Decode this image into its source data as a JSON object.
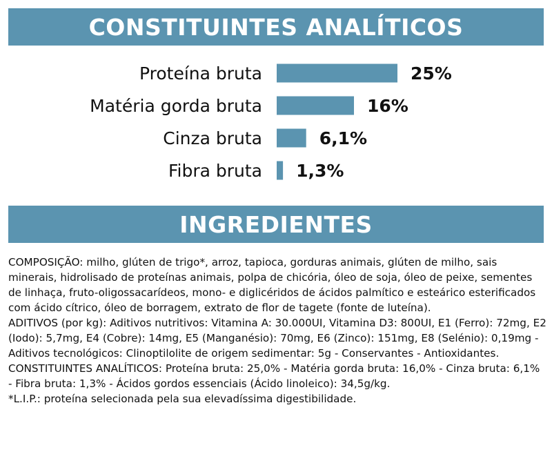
{
  "header_top": "CONSTITUINTES ANALÍTICOS",
  "header_bottom": "INGREDIENTES",
  "chart_data": {
    "type": "bar",
    "orientation": "horizontal",
    "categories": [
      "Proteína bruta",
      "Matéria gorda bruta",
      "Cinza bruta",
      "Fibra bruta"
    ],
    "values": [
      25,
      16,
      6.1,
      1.3
    ],
    "value_labels": [
      "25%",
      "16%",
      "6,1%",
      "1,3%"
    ],
    "unit": "%",
    "xlim": [
      0,
      25
    ],
    "grid": false,
    "bar_color": "#5b94b0"
  },
  "ingredients": {
    "composicao": "COMPOSIÇÃO: milho, glúten de trigo*, arroz, tapioca, gorduras animais, glúten de milho, sais minerais, hidrolisado de proteínas animais, polpa de chicória, óleo de soja, óleo de peixe, sementes de linhaça, fruto-oligossacarídeos, mono- e diglicéridos de ácidos palmítico e esteárico esterificados com ácido cítrico, óleo de borragem, extrato de flor de tagete (fonte de luteína).",
    "aditivos": " ADITIVOS (por kg): Aditivos nutritivos: Vitamina A: 30.000UI, Vitamina D3: 800UI, E1 (Ferro): 72mg, E2 (Iodo): 5,7mg, E4 (Cobre): 14mg, E5 (Manganésio): 70mg, E6 (Zinco): 151mg, E8 (Selénio): 0,19mg - Aditivos tecnológicos: Clinoptilolite de origem sedimentar: 5g - Conservantes - Antioxidantes.",
    "constituintes": " CONSTITUINTES ANALÍTICOS: Proteína bruta: 25,0% - Matéria gorda bruta: 16,0% - Cinza bruta: 6,1% - Fibra bruta: 1,3% - Ácidos gordos essenciais (Ácido linoleico): 34,5g/kg.",
    "lip": " *L.I.P.: proteína selecionada pela sua elevadíssima digestibilidade."
  }
}
